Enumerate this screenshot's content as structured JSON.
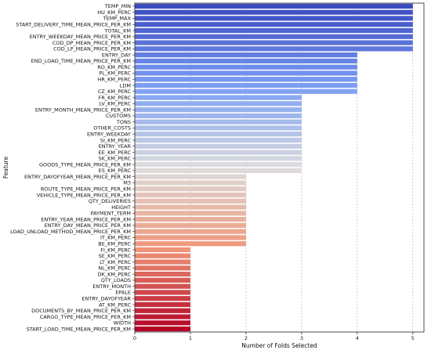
{
  "chart_data": {
    "type": "bar",
    "orientation": "horizontal",
    "xlabel": "Number of Folds Selected",
    "ylabel": "Feature",
    "xlim": [
      0,
      5.2
    ],
    "xticks": [
      0,
      1,
      2,
      3,
      4,
      5
    ],
    "grid": "x-axis, dashed",
    "legend": "none",
    "palette": "coolwarm",
    "categories": [
      "TEMP_MIN",
      "HU_KM_PERC",
      "TEMP_MAX",
      "START_DELIVERY_TIME_MEAN_PRICE_PER_KM",
      "TOTAL_KM",
      "ENTRY_WEEKDAY_MEAN_PRICE_PER_KM",
      "COD_DP_MEAN_PRICE_PER_KM",
      "COD_LP_MEAN_PRICE_PER_KM",
      "ENTRY_DAY",
      "END_LOAD_TIME_MEAN_PRICE_PER_KM",
      "RO_KM_PERC",
      "PL_KM_PERC",
      "HR_KM_PERC",
      "LDM",
      "CZ_KM_PERC",
      "FR_KM_PERC",
      "LV_KM_PERC",
      "ENTRY_MONTH_MEAN_PRICE_PER_KM",
      "CUSTOMS",
      "TONS",
      "OTHER_COSTS",
      "ENTRY_WEEKDAY",
      "SI_KM_PERC",
      "ENTRY_YEAR",
      "EE_KM_PERC",
      "SK_KM_PERC",
      "GOODS_TYPE_MEAN_PRICE_PER_KM",
      "ES_KM_PERC",
      "ENTRY_DAYOFYEAR_MEAN_PRICE_PER_KM",
      "M3",
      "ROUTE_TYPE_MEAN_PRICE_PER_KM",
      "VEHICLE_TYPE_MEAN_PRICE_PER_KM",
      "QTY_DELIVERIES",
      "HEIGHT",
      "PAYMENT_TERM",
      "ENTRY_YEAR_MEAN_PRICE_PER_KM",
      "ENTRY_DAY_MEAN_PRICE_PER_KM",
      "LOAD_UNLOAD_METHOD_MEAN_PRICE_PER_KM",
      "IT_KM_PERC",
      "BE_KM_PERC",
      "FI_KM_PERC",
      "SE_KM_PERC",
      "LT_KM_PERC",
      "NL_KM_PERC",
      "DK_KM_PERC",
      "QTY_LOADS",
      "ENTRY_MONTH",
      "EPALE",
      "ENTRY_DAYOFYEAR",
      "AT_KM_PERC",
      "DOCUMENTS_BY_MEAN_PRICE_PER_KM",
      "CARGO_TYPE_MEAN_PRICE_PER_KM",
      "WIDTH",
      "START_LOAD_TIME_MEAN_PRICE_PER_KM"
    ],
    "values": [
      5,
      5,
      5,
      5,
      5,
      5,
      5,
      5,
      4,
      4,
      4,
      4,
      4,
      4,
      4,
      3,
      3,
      3,
      3,
      3,
      3,
      3,
      3,
      3,
      3,
      3,
      3,
      3,
      2,
      2,
      2,
      2,
      2,
      2,
      2,
      2,
      2,
      2,
      2,
      2,
      1,
      1,
      1,
      1,
      1,
      1,
      1,
      1,
      1,
      1,
      1,
      1,
      1,
      1
    ]
  }
}
